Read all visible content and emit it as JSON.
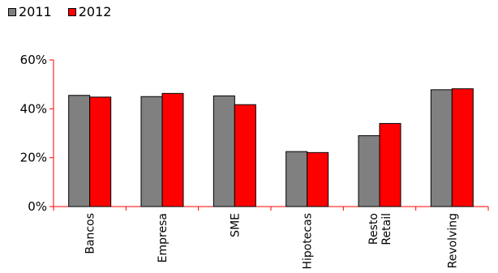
{
  "chart_data": {
    "type": "bar",
    "categories": [
      "Bancos",
      "Empresa",
      "SME",
      "Hipotecas",
      "Resto\nRetail",
      "Revolving"
    ],
    "series": [
      {
        "name": "2011",
        "values": [
          45.5,
          45.0,
          45.3,
          22.5,
          29.0,
          47.8
        ],
        "color": "#808080"
      },
      {
        "name": "2012",
        "values": [
          44.8,
          46.3,
          41.7,
          22.1,
          34.0,
          48.2
        ],
        "color": "#ff0000"
      }
    ],
    "yticks": [
      "0%",
      "20%",
      "40%",
      "60%"
    ],
    "ytick_values": [
      0,
      20,
      40,
      60
    ],
    "ylim": [
      0,
      60
    ],
    "grid": false,
    "legend_position": "top-left"
  }
}
